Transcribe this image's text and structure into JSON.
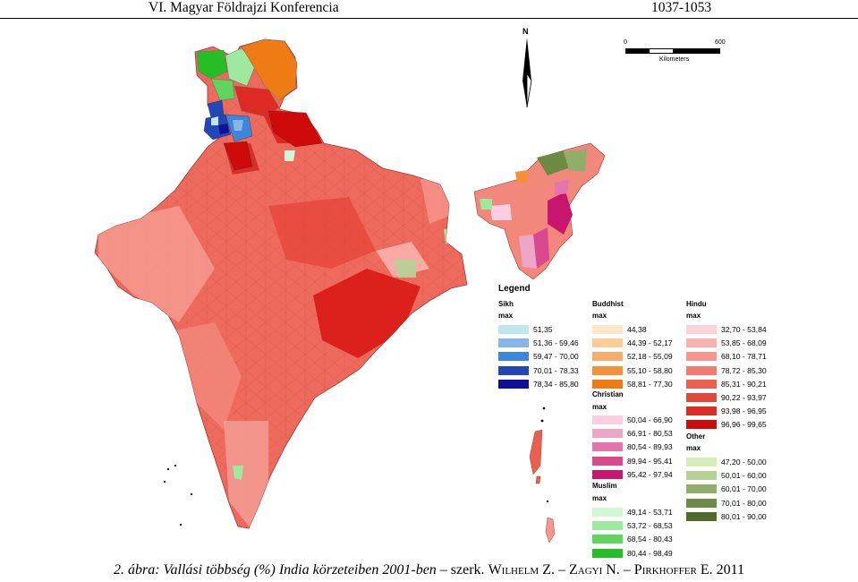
{
  "header": {
    "conference": "VI. Magyar Földrajzi Konferencia",
    "pages": "1037-1053"
  },
  "north_label": "N",
  "scale": {
    "start": "0",
    "end": "600",
    "unit": "Kilometers"
  },
  "legend": {
    "title": "Legend",
    "groups": [
      {
        "name": "Sikh",
        "sub": "max",
        "classes": [
          {
            "label": "51,35",
            "color": "#bfe6ee"
          },
          {
            "label": "51,36 - 59,46",
            "color": "#86b6ea"
          },
          {
            "label": "59,47 - 70,00",
            "color": "#3c87dc"
          },
          {
            "label": "70,01 - 78,33",
            "color": "#2346b8"
          },
          {
            "label": "78,34 - 85,80",
            "color": "#0c1196"
          }
        ]
      },
      {
        "name": "Buddhist",
        "sub": "max",
        "classes": [
          {
            "label": "44,38",
            "color": "#fde7c8"
          },
          {
            "label": "44,39 - 52,17",
            "color": "#fbcb98"
          },
          {
            "label": "52,18 - 55,09",
            "color": "#f9ad6a"
          },
          {
            "label": "55,10 - 58,80",
            "color": "#f48f3a"
          },
          {
            "label": "58,81 - 77,30",
            "color": "#ef7b14"
          }
        ]
      },
      {
        "name": "Christian",
        "sub": "max",
        "classes": [
          {
            "label": "50,04 - 66,90",
            "color": "#f9cfe1"
          },
          {
            "label": "66,91 - 80,53",
            "color": "#eea5c6"
          },
          {
            "label": "80,54 - 89,93",
            "color": "#e375aa"
          },
          {
            "label": "89,94 - 95,41",
            "color": "#d84a8d"
          },
          {
            "label": "95,42 - 97,94",
            "color": "#c8166e"
          }
        ]
      },
      {
        "name": "Muslim",
        "sub": "max",
        "classes": [
          {
            "label": "49,14 - 53,71",
            "color": "#d3f6d3"
          },
          {
            "label": "53,72 - 68,53",
            "color": "#9fe89f"
          },
          {
            "label": "68,54 - 80,43",
            "color": "#5ed65e"
          },
          {
            "label": "80,44 - 98,49",
            "color": "#25bf25"
          }
        ]
      },
      {
        "name": "Hindu",
        "sub": "max",
        "classes": [
          {
            "label": "32,70 - 53,84",
            "color": "#fcd3d6"
          },
          {
            "label": "53,85 - 68,09",
            "color": "#f9b1ad"
          },
          {
            "label": "68,10 - 78,71",
            "color": "#f6968f"
          },
          {
            "label": "78,72 - 85,30",
            "color": "#f27b6e"
          },
          {
            "label": "85,31 - 90,21",
            "color": "#ec5f50"
          },
          {
            "label": "90,22 - 93,97",
            "color": "#e6463a"
          },
          {
            "label": "93,98 - 96,95",
            "color": "#dd2a22"
          },
          {
            "label": "96,96 - 99,65",
            "color": "#cf0a0a"
          }
        ]
      },
      {
        "name": "Other",
        "sub": "max",
        "classes": [
          {
            "label": "47,20 - 50,00",
            "color": "#d7ecb6"
          },
          {
            "label": "50,01 - 60,00",
            "color": "#b8d096"
          },
          {
            "label": "60,01 - 70,00",
            "color": "#91ad6a"
          },
          {
            "label": "70,01 - 80,00",
            "color": "#6c8a44"
          },
          {
            "label": "80,01 - 90,00",
            "color": "#4f6a2c"
          }
        ]
      }
    ]
  },
  "caption": {
    "prefix": "2. ábra: Vallási többség (%) India körzeteiben 2001-ben",
    "sep": " – szerk. ",
    "authors": "Wilhelm Z. – Zagyi N. – Pirkhoffer E. 2011"
  }
}
